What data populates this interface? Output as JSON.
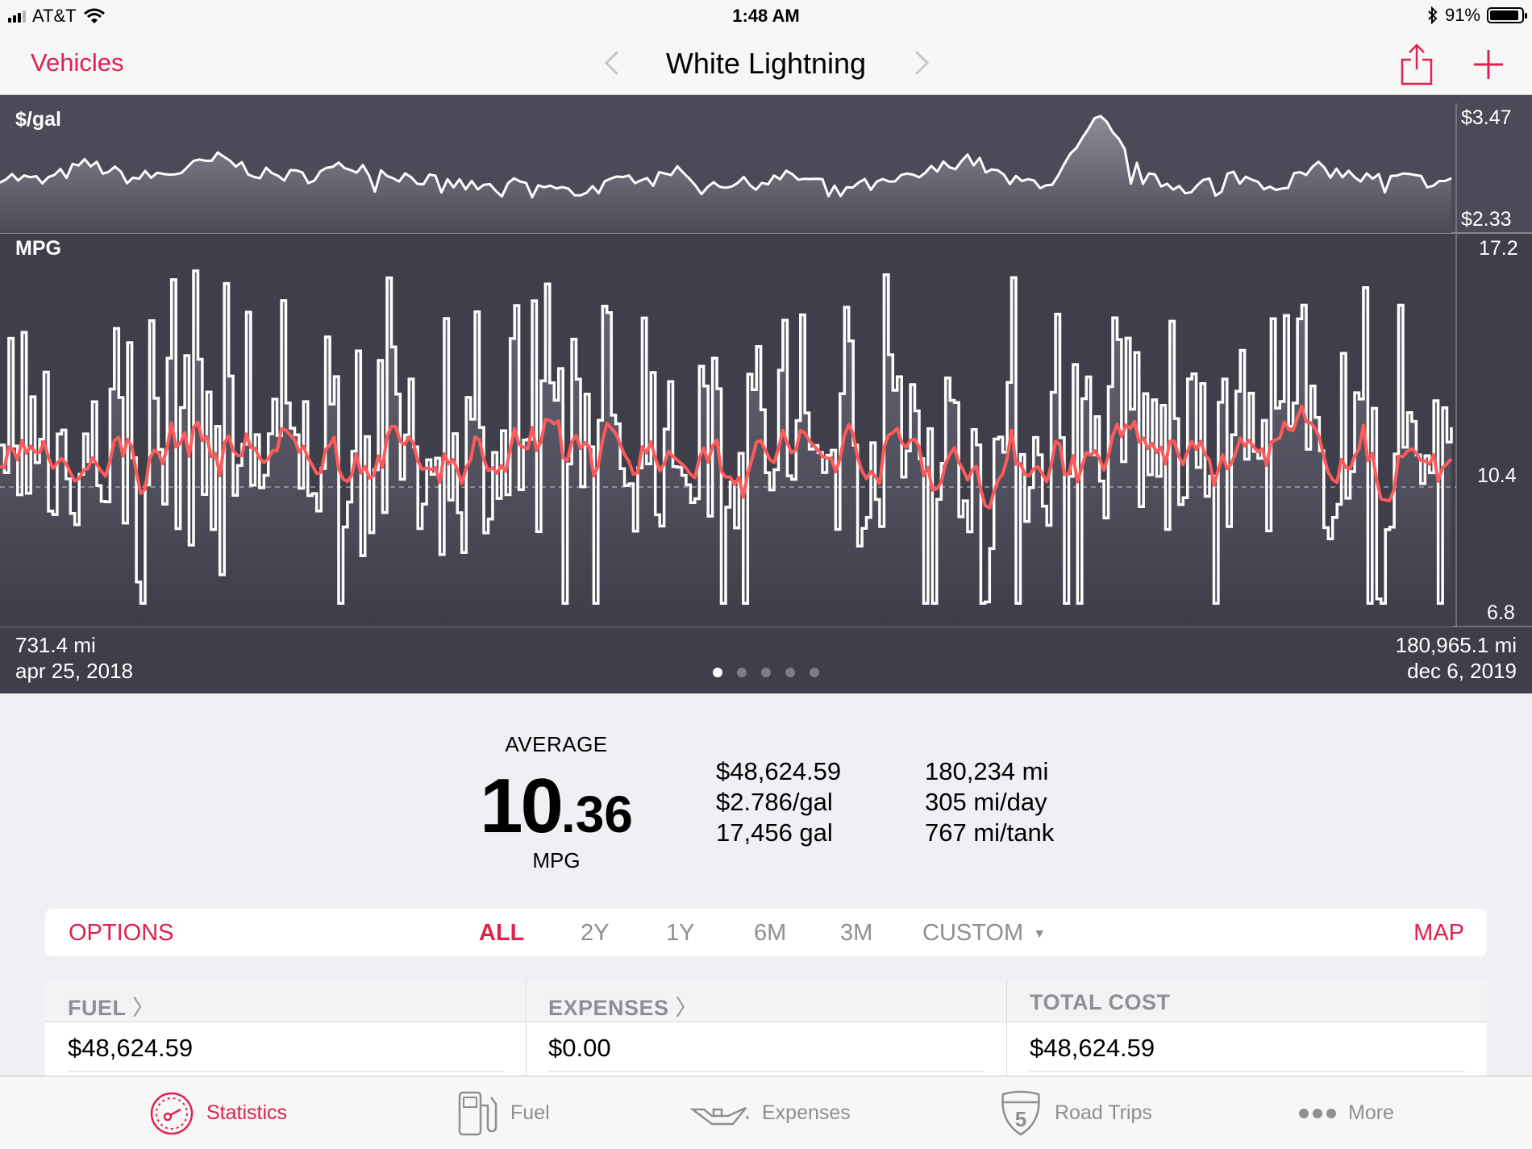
{
  "status": {
    "carrier": "AT&T",
    "time": "1:48 AM",
    "battery": "91%",
    "battery_level": 0.91,
    "icons": [
      "signal-icon",
      "wifi-icon",
      "bluetooth-icon",
      "battery-icon"
    ]
  },
  "nav": {
    "back_label": "Vehicles",
    "title": "White Lightning",
    "icons": [
      "chevron-left-icon",
      "chevron-right-icon",
      "share-icon",
      "plus-icon"
    ]
  },
  "chart": {
    "price_label": "$/gal",
    "price_max": "$3.47",
    "price_min": "$2.33",
    "mpg_label": "MPG",
    "mpg_max": "17.2",
    "mpg_avg": "10.4",
    "mpg_min": "6.8",
    "start_miles": "731.4 mi",
    "start_date": "apr 25, 2018",
    "end_miles": "180,965.1 mi",
    "end_date": "dec 6, 2019",
    "page_count": 5,
    "active_page": 1
  },
  "chart_data": [
    {
      "type": "line",
      "title": "",
      "ylabel": "$/gal",
      "ylim": [
        2.33,
        3.47
      ],
      "series": [
        {
          "name": "$/gal",
          "color": "#ffffff"
        }
      ],
      "note_points": [
        2.7,
        2.62,
        2.85,
        2.66,
        2.74,
        2.92,
        2.71,
        2.69,
        2.84,
        2.71,
        2.62,
        2.54,
        2.61,
        2.48,
        2.6,
        2.8,
        2.62,
        2.59,
        2.69,
        2.58,
        2.57,
        2.71,
        2.93,
        2.61,
        2.63,
        3.44,
        2.66,
        2.55,
        2.7,
        2.57,
        2.79,
        2.66,
        2.66,
        2.6
      ]
    },
    {
      "type": "line",
      "title": "",
      "ylabel": "MPG",
      "ylim": [
        6.8,
        17.2
      ],
      "x_range": [
        "apr 25, 2018",
        "dec 6, 2019"
      ],
      "reference_line": 10.4,
      "series": [
        {
          "name": "MPG",
          "color": "#ffffff"
        },
        {
          "name": "average",
          "color": "#ff5a5a"
        }
      ]
    }
  ],
  "stats": {
    "average_title": "AVERAGE",
    "average_int": "10",
    "average_dec": ".36",
    "average_unit": "MPG",
    "total_cost": "$48,624.59",
    "price_per_gal": "$2.786/gal",
    "total_gal": "17,456 gal",
    "total_miles": "180,234 mi",
    "miles_per_day": "305 mi/day",
    "miles_per_tank": "767 mi/tank"
  },
  "period": {
    "options_label": "OPTIONS",
    "items": [
      "ALL",
      "2Y",
      "1Y",
      "6M",
      "3M"
    ],
    "active": "ALL",
    "custom_label": "CUSTOM",
    "custom_icon": "caret-down-icon",
    "map_label": "MAP"
  },
  "summary": {
    "fuel_label": "FUEL",
    "fuel_value": "$48,624.59",
    "expenses_label": "EXPENSES",
    "expenses_value": "$0.00",
    "total_label": "TOTAL COST",
    "total_value": "$48,624.59",
    "chevron_icon": "chevron-right-icon"
  },
  "tabs": {
    "statistics": "Statistics",
    "fuel": "Fuel",
    "expenses": "Expenses",
    "road_trips": "Road Trips",
    "more": "More",
    "active": "Statistics"
  },
  "colors": {
    "accent": "#e0204e",
    "chart_bg": "#3b3b47",
    "avg_line": "#ff5a5a",
    "inactive": "#8e8e93"
  }
}
